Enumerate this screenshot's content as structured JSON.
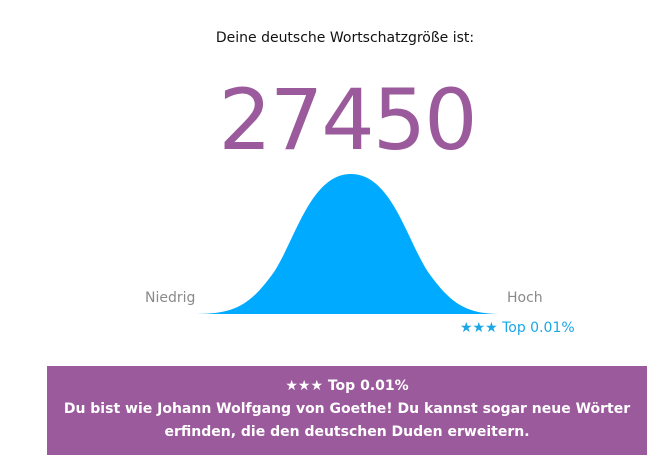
{
  "heading": "Deine deutsche Wortschatzgröße ist:",
  "score": "27450",
  "scale": {
    "low_label": "Niedrig",
    "high_label": "Hoch",
    "percentile_marker": "★★★ Top 0.01%"
  },
  "result": {
    "rank": "★★★ Top 0.01%",
    "line1": "Du bist wie Johann Wolfgang von Goethe! Du kannst sogar neue Wörter",
    "line2": "erfinden, die den deutschen Duden erweitern."
  },
  "colors": {
    "accent": "#9b5a9c",
    "curve": "#00aaff",
    "rank_text": "#1aa7e6"
  }
}
